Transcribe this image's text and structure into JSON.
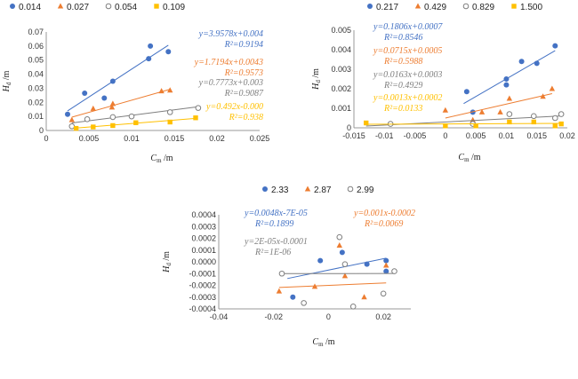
{
  "chart_data": [
    {
      "type": "scatter",
      "xlabel": "C_m /m",
      "ylabel": "H_d /m",
      "xlim": [
        0,
        0.025
      ],
      "ylim": [
        0,
        0.07
      ],
      "xticks": [
        "0",
        "0.005",
        "0.01",
        "0.015",
        "0.02",
        "0.025"
      ],
      "yticks": [
        "0",
        "0.01",
        "0.02",
        "0.03",
        "0.04",
        "0.05",
        "0.06",
        "0.07"
      ],
      "legend": "top",
      "grid": false,
      "series": [
        {
          "name": "0.014",
          "color": "#4472C4",
          "marker": "circle",
          "points": [
            [
              0.0025,
              0.0115
            ],
            [
              0.0045,
              0.0265
            ],
            [
              0.0068,
              0.023
            ],
            [
              0.0078,
              0.035
            ],
            [
              0.0122,
              0.06
            ],
            [
              0.012,
              0.051
            ],
            [
              0.0143,
              0.056
            ]
          ],
          "fit": {
            "label": "y=3.9578x+0.004",
            "r2": "R²=0.9194",
            "x": [
              0.0025,
              0.0143
            ]
          }
        },
        {
          "name": "0.027",
          "color": "#ED7D31",
          "marker": "triangle",
          "points": [
            [
              0.003,
              0.0075
            ],
            [
              0.0055,
              0.0155
            ],
            [
              0.0078,
              0.019
            ],
            [
              0.0077,
              0.0165
            ],
            [
              0.0135,
              0.028
            ],
            [
              0.0145,
              0.0285
            ]
          ],
          "fit": {
            "label": "y=1.7194x+0.0043",
            "r2": "R²=0.9573",
            "x": [
              0.003,
              0.0145
            ]
          }
        },
        {
          "name": "0.054",
          "color": "#7F7F7F",
          "marker": "open-circle",
          "points": [
            [
              0.003,
              0.003
            ],
            [
              0.0048,
              0.008
            ],
            [
              0.0078,
              0.0095
            ],
            [
              0.01,
              0.01
            ],
            [
              0.0145,
              0.013
            ],
            [
              0.0178,
              0.016
            ]
          ],
          "fit": {
            "label": "y=0.7773x+0.003",
            "r2": "R²=0.9087",
            "x": [
              0.003,
              0.0178
            ]
          }
        },
        {
          "name": "0.109",
          "color": "#FFC000",
          "marker": "square",
          "points": [
            [
              0.0035,
              0.0015
            ],
            [
              0.0055,
              0.0025
            ],
            [
              0.0078,
              0.0035
            ],
            [
              0.0105,
              0.0055
            ],
            [
              0.0145,
              0.006
            ],
            [
              0.0175,
              0.009
            ]
          ],
          "fit": {
            "label": "y=0.492x-0.000",
            "r2": "R²=0.938",
            "x": [
              0.0035,
              0.0175
            ]
          }
        }
      ]
    },
    {
      "type": "scatter",
      "xlabel": "C_m /m",
      "ylabel": "H_d /m",
      "xlim": [
        -0.015,
        0.02
      ],
      "ylim": [
        0,
        0.005
      ],
      "xticks": [
        "-0.015",
        "-0.01",
        "-0.005",
        "0",
        "0.005",
        "0.01",
        "0.015",
        "0.02"
      ],
      "yticks": [
        "0",
        "0.001",
        "0.002",
        "0.003",
        "0.004",
        "0.005"
      ],
      "legend": "top",
      "grid": false,
      "series": [
        {
          "name": "0.217",
          "color": "#4472C4",
          "marker": "circle",
          "points": [
            [
              0.0035,
              0.00185
            ],
            [
              0.0045,
              0.0008
            ],
            [
              0.01,
              0.0022
            ],
            [
              0.01,
              0.0025
            ],
            [
              0.0125,
              0.0034
            ],
            [
              0.015,
              0.0033
            ],
            [
              0.018,
              0.0042
            ]
          ],
          "fit": {
            "label": "y=0.1806x+0.0007",
            "r2": "R²=0.8546",
            "x": [
              0.003,
              0.018
            ]
          }
        },
        {
          "name": "0.429",
          "color": "#ED7D31",
          "marker": "triangle",
          "points": [
            [
              0.0,
              0.0009
            ],
            [
              0.0045,
              0.0004
            ],
            [
              0.006,
              0.0008
            ],
            [
              0.009,
              0.0008
            ],
            [
              0.0105,
              0.0015
            ],
            [
              0.016,
              0.0016
            ],
            [
              0.0175,
              0.002
            ]
          ],
          "fit": {
            "label": "y=0.0715x+0.0005",
            "r2": "R²=0.5988",
            "x": [
              0.0,
              0.0175
            ]
          }
        },
        {
          "name": "0.829",
          "color": "#7F7F7F",
          "marker": "open-circle",
          "points": [
            [
              -0.009,
              0.0002
            ],
            [
              0.0045,
              0.0002
            ],
            [
              0.0105,
              0.0007
            ],
            [
              0.0145,
              0.0006
            ],
            [
              0.018,
              0.0005
            ],
            [
              0.019,
              0.0007
            ]
          ],
          "fit": {
            "label": "y=0.0163x+0.0003",
            "r2": "R²=0.4929",
            "x": [
              -0.013,
              0.019
            ]
          }
        },
        {
          "name": "1.500",
          "color": "#FFC000",
          "marker": "square",
          "points": [
            [
              -0.013,
              0.00025
            ],
            [
              0.0,
              0.0001
            ],
            [
              0.005,
              0.0001
            ],
            [
              0.0105,
              0.0003
            ],
            [
              0.0145,
              0.0003
            ],
            [
              0.018,
              0.0001
            ],
            [
              0.019,
              0.0002
            ]
          ],
          "fit": {
            "label": "y=0.0013x+0.0002",
            "r2": "R²=0.0133",
            "x": [
              -0.013,
              0.019
            ]
          }
        }
      ]
    },
    {
      "type": "scatter",
      "xlabel": "C_m /m",
      "ylabel": "H_d /m",
      "xlim": [
        -0.04,
        0.03
      ],
      "ylim": [
        -0.0004,
        0.0004
      ],
      "xticks": [
        "-0.04",
        "-0.02",
        "0",
        "0.02"
      ],
      "xtick_values": [
        -0.04,
        -0.02,
        0,
        0.02
      ],
      "yticks": [
        "-0.0004",
        "-0.0003",
        "-0.0002",
        "-0.0001",
        "0.0000",
        "0.0001",
        "0.0002",
        "0.0003",
        "0.0004"
      ],
      "legend": "top",
      "grid": false,
      "series": [
        {
          "name": "2.33",
          "color": "#4472C4",
          "marker": "circle",
          "points": [
            [
              -0.013,
              -0.0003
            ],
            [
              -0.003,
              1e-05
            ],
            [
              0.005,
              8e-05
            ],
            [
              0.014,
              -2e-05
            ],
            [
              0.021,
              1e-05
            ],
            [
              0.021,
              -8e-05
            ]
          ],
          "fit": {
            "label": "y=0.0048x-7E-05",
            "r2": "R²=0.1899",
            "x": [
              -0.015,
              0.021
            ]
          }
        },
        {
          "name": "2.87",
          "color": "#ED7D31",
          "marker": "triangle",
          "points": [
            [
              -0.018,
              -0.00025
            ],
            [
              -0.005,
              -0.00021
            ],
            [
              0.004,
              0.00014
            ],
            [
              0.006,
              -0.00012
            ],
            [
              0.013,
              -0.0003
            ],
            [
              0.021,
              -3e-05
            ]
          ],
          "fit": {
            "label": "y=0.001x-0.0002",
            "r2": "R²=0.0069",
            "x": [
              -0.018,
              0.021
            ]
          }
        },
        {
          "name": "2.99",
          "color": "#7F7F7F",
          "marker": "open-circle",
          "points": [
            [
              -0.017,
              -0.0001
            ],
            [
              -0.009,
              -0.00035
            ],
            [
              0.004,
              0.00021
            ],
            [
              0.006,
              -2e-05
            ],
            [
              0.009,
              -0.00038
            ],
            [
              0.02,
              -0.00027
            ],
            [
              0.024,
              -8e-05
            ]
          ],
          "fit": {
            "label": "y=2E-05x-0.0001",
            "r2": "R²=1E-06",
            "x": [
              -0.017,
              0.024
            ]
          }
        }
      ]
    }
  ]
}
